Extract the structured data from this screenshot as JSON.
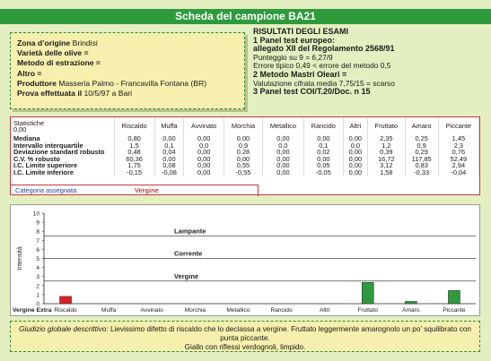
{
  "title": "Scheda del campione BA21",
  "origin": {
    "lines": [
      {
        "label": "Zona d’origine",
        "value": "Brindisi"
      },
      {
        "label": "Varietà delle olive =",
        "value": ""
      },
      {
        "label": "Metodo di estrazione =",
        "value": ""
      },
      {
        "label": "Altro =",
        "value": ""
      },
      {
        "label": "Produttore",
        "value": "Masseria Palmo - Francavilla Fontana (BR)"
      },
      {
        "label": "Prova effettuata il",
        "value": "10/5/97  a Bari"
      }
    ]
  },
  "results": {
    "heading": "RISULTATI DEGLI ESAMI",
    "l1": "1 Panel test europeo:",
    "l2": "allegato XII del Regolamento 2568/91",
    "l3": "Punteggio su 9 = 6,27/9",
    "l4": "Errore tipico 0,49 < errore del metodo 0,5",
    "l5": "2 Metodo Mastri Oleari =",
    "l6": "Valutazione cifrata media 7,75/15 = scarso",
    "l7": "3 Panel test COI/T.20/Doc. n 15"
  },
  "stats": {
    "header_label_1": "Statistiche",
    "header_label_2": "0,00",
    "columns": [
      "Riscaldo",
      "Muffa",
      "Avvinato",
      "Morchia",
      "Metallico",
      "Rancido",
      "Altri",
      "Fruttato",
      "Amaro",
      "Piccante"
    ],
    "rows": [
      {
        "label": "Mediana",
        "values": [
          "0,80",
          "0,00",
          "0,00",
          "0,00",
          "0,00",
          "0,00",
          "0,00",
          "2,35",
          "0,25",
          "1,45"
        ]
      },
      {
        "label": "Intervallo interquartile",
        "values": [
          "1,5",
          "0,1",
          "0,0",
          "0,9",
          "0,0",
          "0,1",
          "0,0",
          "1,2",
          "0,9",
          "2,3"
        ]
      },
      {
        "label": "Deviazione standard robusto",
        "values": [
          "0,48",
          "0,04",
          "0,00",
          "0,28",
          "0,00",
          "0,02",
          "0,00",
          "0,39",
          "0,29",
          "0,76"
        ]
      },
      {
        "label": "C.V. % robusto",
        "values": [
          "60,36",
          "0,00",
          "0,00",
          "0,00",
          "0,00",
          "0,00",
          "0,00",
          "16,72",
          "117,85",
          "52,49"
        ]
      },
      {
        "label": "I.C. Limite superiore",
        "values": [
          "1,75",
          "0,08",
          "0,00",
          "0,55",
          "0,00",
          "0,05",
          "0,00",
          "3,12",
          "0,83",
          "2,94"
        ]
      },
      {
        "label": "I.C. Limite inferiore",
        "values": [
          "-0,15",
          "-0,08",
          "0,00",
          "-0,55",
          "0,00",
          "-0,05",
          "0,00",
          "1,58",
          "-0,33",
          "-0,04"
        ]
      }
    ],
    "category_label": "Categoria assegnata",
    "category_value": "Vergine"
  },
  "chart_data": {
    "type": "bar",
    "categories": [
      "Riscaldo",
      "Muffa",
      "Avvinato",
      "Morchia",
      "Metallico",
      "Rancido",
      "Altri",
      "Fruttato",
      "Amaro",
      "Piccante"
    ],
    "values": [
      0.8,
      0,
      0,
      0,
      0,
      0,
      0,
      2.35,
      0.25,
      1.45
    ],
    "colors": [
      "#d81f26",
      "#2f9a3c",
      "#2f9a3c",
      "#2f9a3c",
      "#2f9a3c",
      "#2f9a3c",
      "#2f9a3c",
      "#2f9a3c",
      "#2f9a3c",
      "#2f9a3c"
    ],
    "ylabel": "Intensità",
    "ylim": [
      0,
      10
    ],
    "yticks": [
      0,
      1,
      2,
      3,
      4,
      5,
      6,
      7,
      8,
      9,
      10
    ],
    "bands": [
      {
        "label": "Lampante"
      },
      {
        "label": "Corrente"
      },
      {
        "label": "Vergine"
      }
    ],
    "band_lines": [
      7.5,
      5,
      2.5
    ],
    "xaxis_label": "Vergine Extra"
  },
  "judgement": {
    "label": "Giudizio globale descrittivo:",
    "text": "Lievissimo difetto di riscaldo che lo declassa a vergine. Fruttato leggermente amarognolo un po’ squilibrato con punta piccante.",
    "text2": "Giallo con riflessi verdognoli, limpido."
  }
}
